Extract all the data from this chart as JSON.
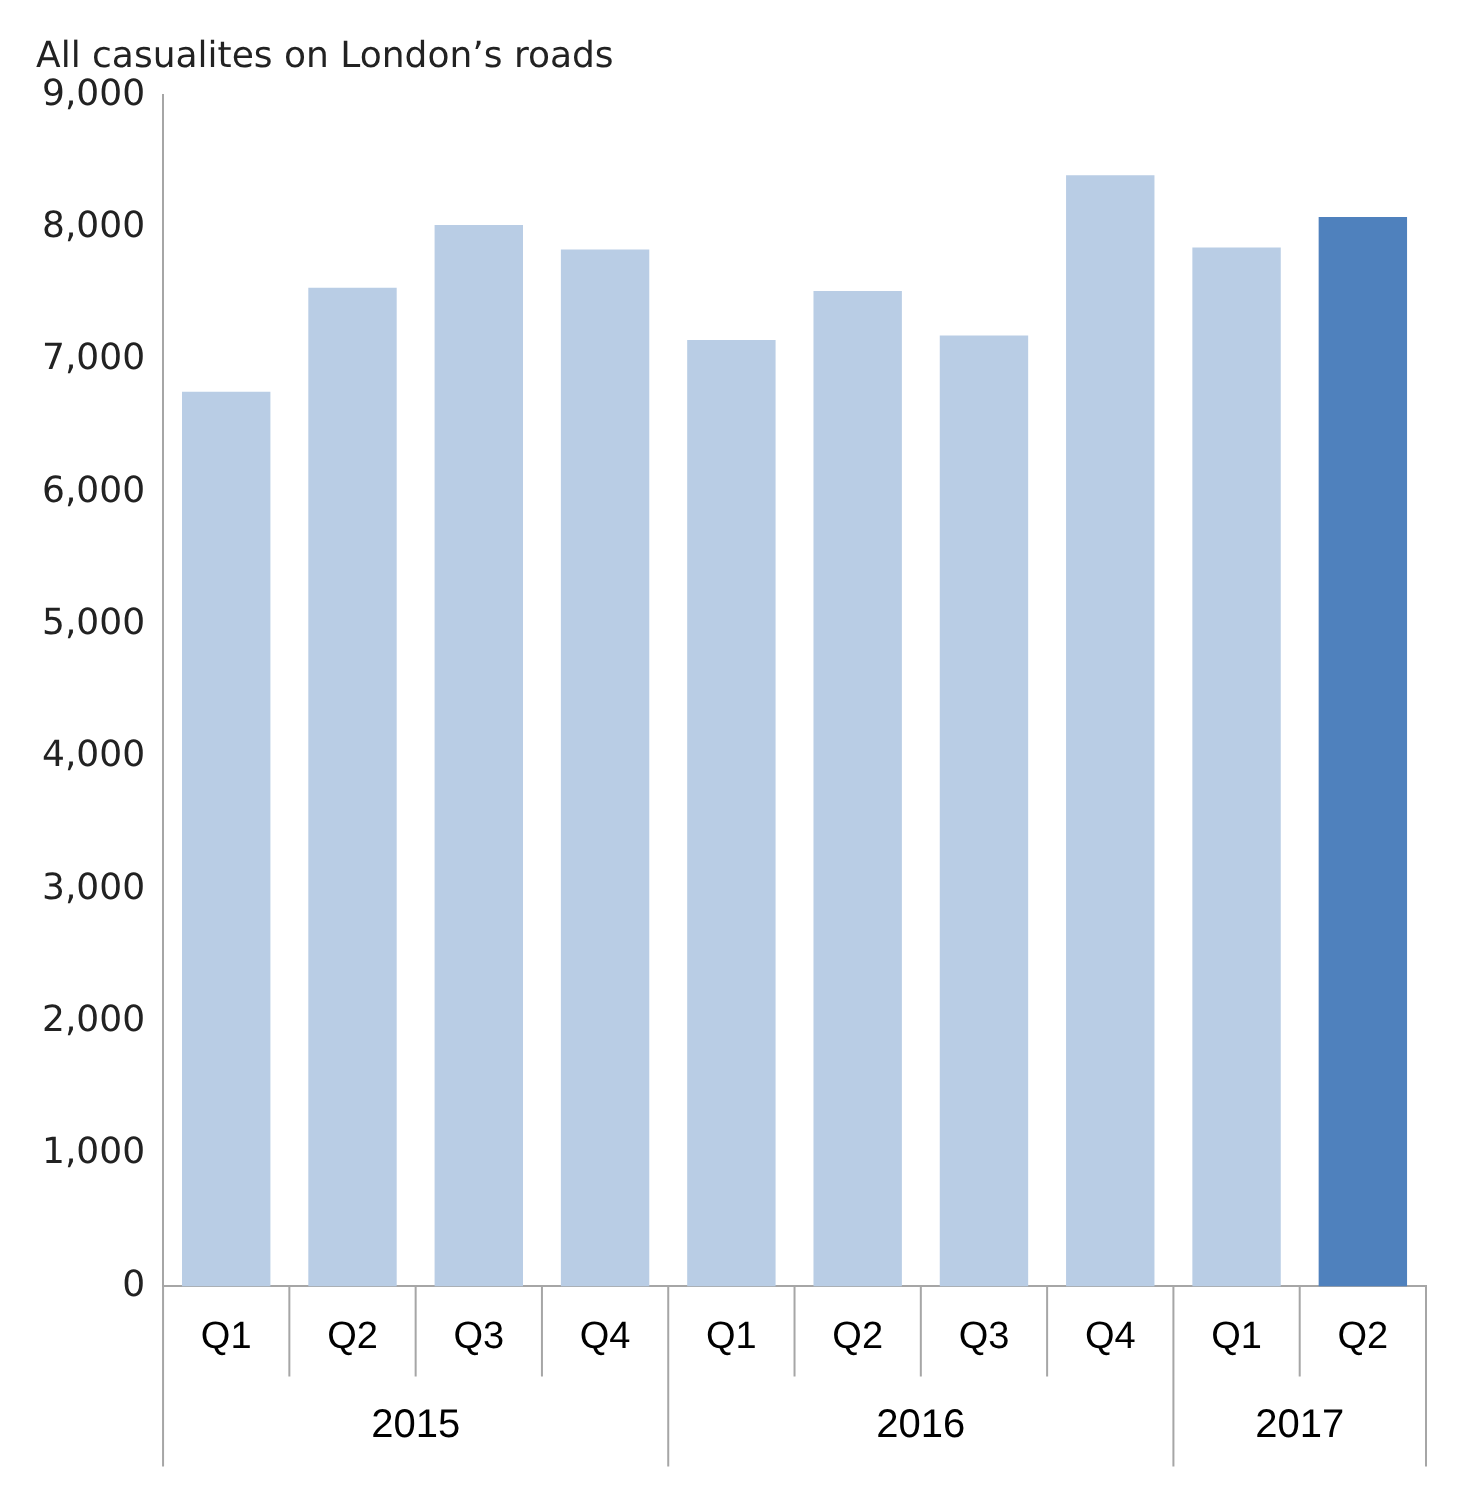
{
  "chart_data": {
    "type": "bar",
    "title": "All casualites on London’s roads",
    "categories": [
      "Q1",
      "Q2",
      "Q3",
      "Q4",
      "Q1",
      "Q2",
      "Q3",
      "Q4",
      "Q1",
      "Q2"
    ],
    "values": [
      6760,
      7545,
      8020,
      7835,
      7150,
      7520,
      7185,
      8395,
      7850,
      8080
    ],
    "colors": [
      "#b9cde5",
      "#b9cde5",
      "#b9cde5",
      "#b9cde5",
      "#b9cde5",
      "#b9cde5",
      "#b9cde5",
      "#b9cde5",
      "#b9cde5",
      "#4f81bd"
    ],
    "ylim": [
      0,
      9000
    ],
    "yticks": [
      0,
      {
        "value": 1000,
        "label": "1,000"
      },
      {
        "value": 2000,
        "label": "2,000"
      },
      {
        "value": 3000,
        "label": "3,000"
      },
      {
        "value": 4000,
        "label": "4,000"
      },
      {
        "value": 5000,
        "label": "5,000"
      },
      {
        "value": 6000,
        "label": "6,000"
      },
      {
        "value": 7000,
        "label": "7,000"
      },
      {
        "value": 8000,
        "label": "8,000"
      },
      {
        "value": 9000,
        "label": "9,000"
      }
    ],
    "annotations": [
      "2015",
      "2016",
      "2017"
    ],
    "grid": false,
    "legend": false
  }
}
